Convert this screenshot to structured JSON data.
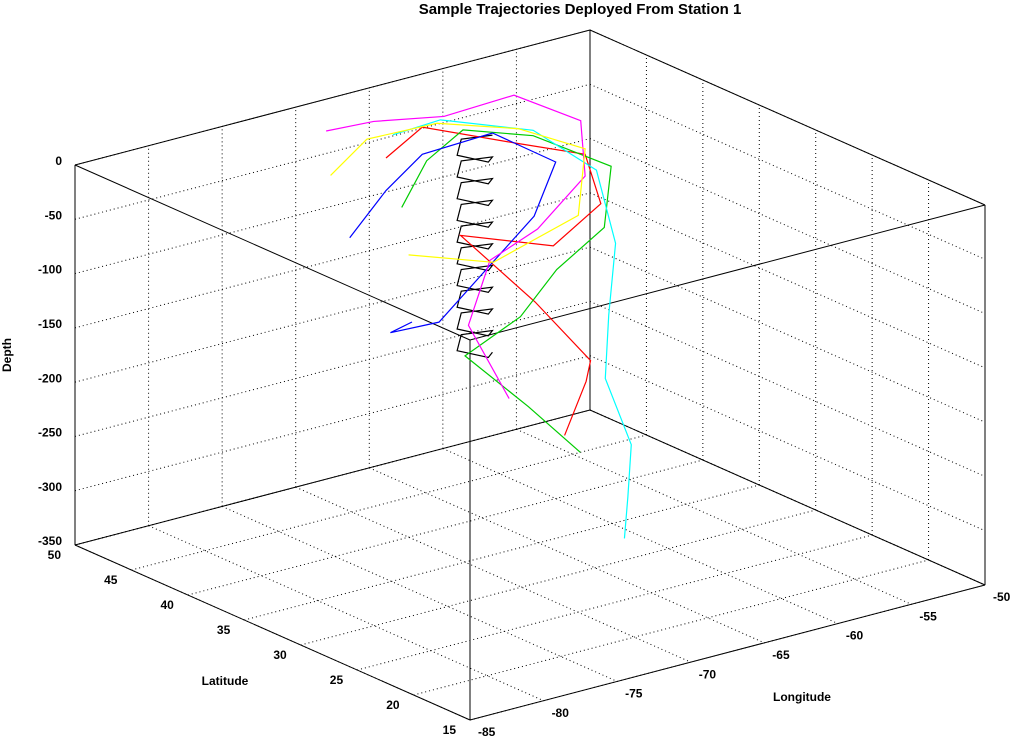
{
  "chart_data": {
    "type": "line3d",
    "title": "Sample Trajectories Deployed From Station 1",
    "xlabel": "Longitude",
    "ylabel": "Latitude",
    "zlabel": "Depth",
    "xlim": [
      -85,
      -50
    ],
    "ylim": [
      15,
      50
    ],
    "zlim": [
      -350,
      0
    ],
    "xticks": [
      -85,
      -80,
      -75,
      -70,
      -65,
      -60,
      -55,
      -50
    ],
    "yticks": [
      15,
      20,
      25,
      30,
      35,
      40,
      45,
      50
    ],
    "zticks": [
      -350,
      -300,
      -250,
      -200,
      -150,
      -100,
      -50,
      0
    ],
    "grid": true,
    "series": [
      {
        "color": "#000000",
        "x": [
          -64.3,
          -65.5,
          -66.7,
          -65.5,
          -64.3,
          -65.5,
          -66.7,
          -65.5,
          -64.3,
          -65.5,
          -66.7,
          -65.5,
          -64.3,
          -65.5,
          -66.7,
          -65.5,
          -64.3,
          -65.5,
          -66.7,
          -65.5,
          -64.3,
          -65.5,
          -66.7,
          -65.5,
          -64.3,
          -65.5,
          -66.7,
          -65.5,
          -64.3,
          -65.5,
          -66.7,
          -65.5,
          -64.3,
          -65.5,
          -66.7,
          -65.5,
          -64.3,
          -65.5,
          -66.7,
          -65.5,
          -64.3
        ],
        "y": [
          40,
          41.2,
          40,
          38.8,
          40,
          41.2,
          40,
          38.8,
          40,
          41.2,
          40,
          38.8,
          40,
          41.2,
          40,
          38.8,
          40,
          41.2,
          40,
          38.8,
          40,
          41.2,
          40,
          38.8,
          40,
          41.2,
          40,
          38.8,
          40,
          41.2,
          40,
          38.8,
          40,
          41.2,
          40,
          38.8,
          40,
          41.2,
          40,
          38.8,
          40
        ],
        "z": [
          0,
          -5,
          -10,
          -15,
          -20,
          -25,
          -30,
          -35,
          -40,
          -45,
          -50,
          -55,
          -60,
          -65,
          -70,
          -75,
          -80,
          -85,
          -90,
          -95,
          -100,
          -105,
          -110,
          -115,
          -120,
          -125,
          -130,
          -135,
          -140,
          -145,
          -150,
          -155,
          -160,
          -165,
          -170,
          -175,
          -180,
          -185,
          -190,
          -195,
          -200
        ]
      },
      {
        "color": "#ff0000",
        "x": [
          -70,
          -66,
          -62,
          -58,
          -60,
          -64,
          -68,
          -66,
          -63,
          -61,
          -64
        ],
        "y": [
          42,
          44,
          41,
          40,
          36,
          35,
          38,
          34,
          33,
          36,
          34
        ],
        "z": [
          -10,
          -5,
          -20,
          -40,
          -60,
          -80,
          -70,
          -120,
          -180,
          -220,
          -250
        ]
      },
      {
        "color": "#00cc00",
        "x": [
          -72,
          -68,
          -64,
          -60,
          -57,
          -59,
          -63,
          -67,
          -70,
          -68,
          -66
        ],
        "y": [
          38,
          41,
          43,
          42,
          39,
          37,
          36,
          34,
          35,
          32,
          30
        ],
        "z": [
          -30,
          -15,
          -10,
          -25,
          -50,
          -90,
          -110,
          -130,
          -160,
          -200,
          -240
        ]
      },
      {
        "color": "#0000ff",
        "x": [
          -74,
          -70,
          -66,
          -62,
          -60,
          -63,
          -67,
          -71,
          -72,
          -69
        ],
        "y": [
          40,
          42,
          44,
          43,
          40,
          38,
          37,
          36,
          39,
          41
        ],
        "z": [
          -60,
          -40,
          -30,
          -20,
          -40,
          -70,
          -100,
          -130,
          -150,
          -160
        ]
      },
      {
        "color": "#00ffff",
        "x": [
          -68,
          -64,
          -60,
          -58,
          -59,
          -61,
          -62,
          -61,
          -62,
          -63
        ],
        "y": [
          44,
          45,
          42,
          39,
          36,
          34,
          33,
          32,
          31,
          30
        ],
        "z": [
          -5,
          -10,
          -20,
          -50,
          -100,
          -150,
          -200,
          -260,
          -300,
          -330
        ]
      },
      {
        "color": "#ff00ff",
        "x": [
          -71,
          -67,
          -63,
          -59,
          -56,
          -58,
          -62,
          -66,
          -69,
          -67
        ],
        "y": [
          46,
          47,
          46,
          45,
          43,
          40,
          39,
          38,
          36,
          35
        ],
        "z": [
          0,
          -10,
          -15,
          -5,
          -30,
          -60,
          -90,
          -100,
          -140,
          -210
        ]
      },
      {
        "color": "#ffff00",
        "x": [
          -73,
          -69,
          -65,
          -61,
          -58,
          -60,
          -65,
          -70
        ],
        "y": [
          43,
          45,
          44,
          42,
          40,
          38,
          39,
          40
        ],
        "z": [
          -20,
          -10,
          -5,
          -15,
          -35,
          -80,
          -110,
          -90
        ]
      }
    ]
  }
}
